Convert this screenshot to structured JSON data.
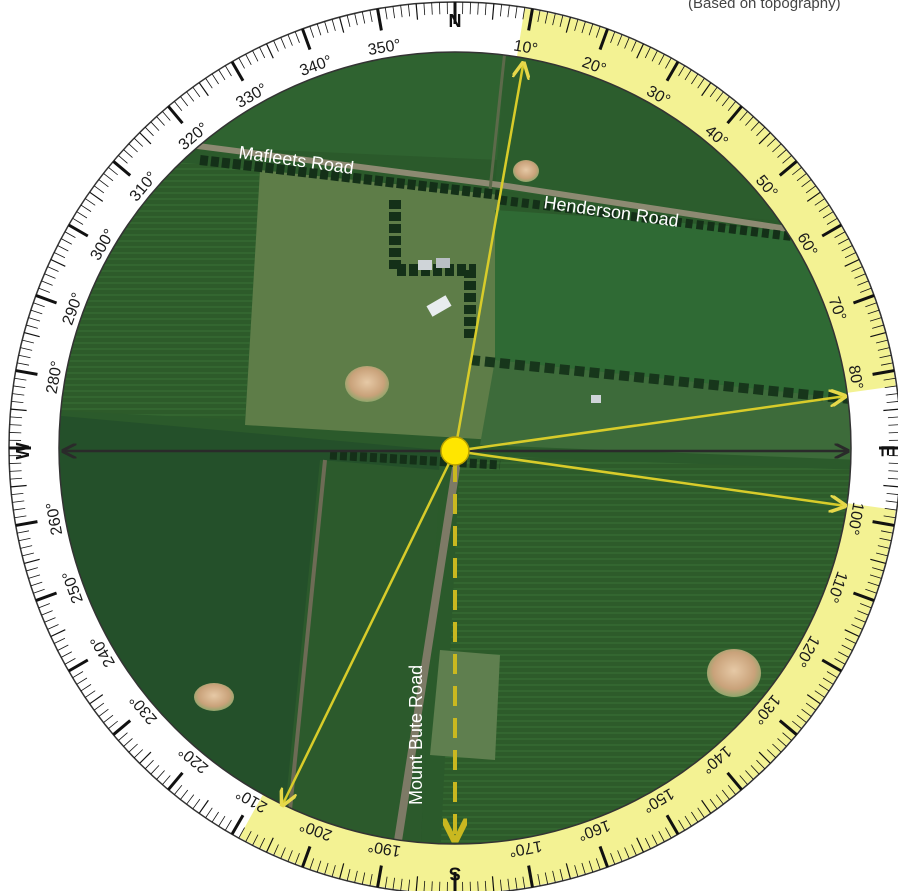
{
  "caption_fragment": "(Based on topography)",
  "compass": {
    "cardinals": {
      "N": "N",
      "E": "E",
      "S": "S",
      "W": "W"
    },
    "degree_labels": [
      "10",
      "20",
      "30",
      "40",
      "50",
      "60",
      "70",
      "80",
      "100",
      "110",
      "120",
      "130",
      "140",
      "150",
      "160",
      "170",
      "190",
      "200",
      "210",
      "220",
      "230",
      "240",
      "250",
      "260",
      "280",
      "290",
      "300",
      "310",
      "320",
      "330",
      "340",
      "350"
    ],
    "degree_symbol": "°",
    "highlight_arcs": [
      {
        "from_deg": 9,
        "to_deg": 82
      },
      {
        "from_deg": 98,
        "to_deg": 209
      }
    ]
  },
  "map_labels": {
    "mafleets_road": "Mafleets Road",
    "henderson_road": "Henderson Road",
    "mount_bute_road": "Mount Bute Road"
  },
  "rays": {
    "bearings_deg": [
      10,
      82,
      98,
      206
    ],
    "dashed_bearing_deg": 180,
    "east_west_axis": true
  },
  "colors": {
    "highlight": "#f3f293",
    "ray": "#d8cc2a",
    "dashed": "#c9b820",
    "center_dot": "#ffe600",
    "axis": "#2a2a2a",
    "ring_bg": "#ffffff"
  }
}
